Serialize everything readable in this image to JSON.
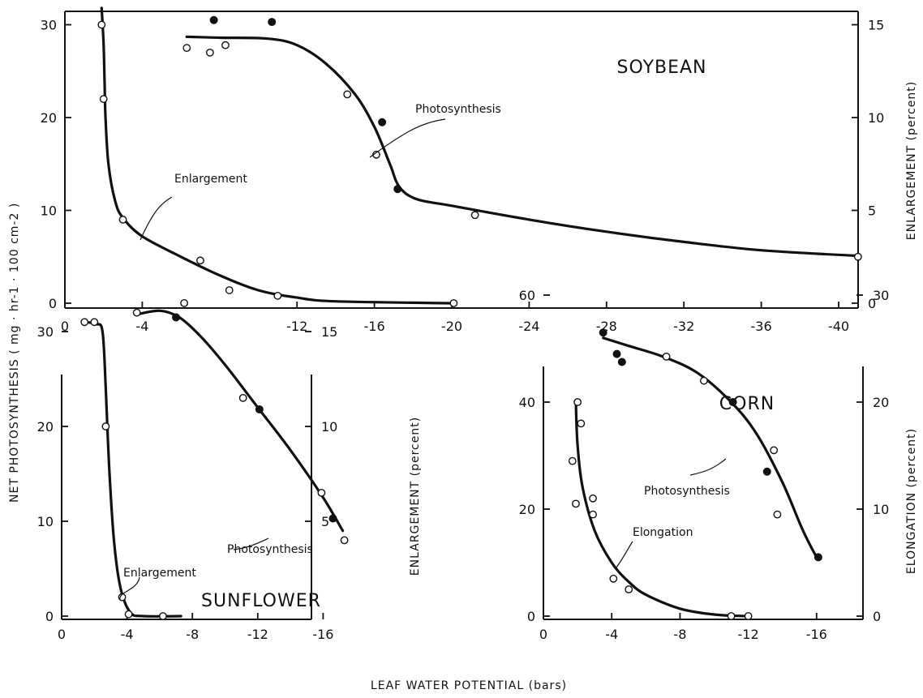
{
  "shared_labels": {
    "ylabel_left": "NET PHOTOSYNTHESIS  ( mg · hr-1 · 100 cm-2 )",
    "xlabel": "LEAF  WATER  POTENTIAL  (bars)"
  },
  "chart_data": [
    {
      "type": "line",
      "panel": "SOYBEAN",
      "title": "SOYBEAN",
      "x_ticks": [
        0,
        -4,
        -12,
        -16,
        -20,
        -24,
        -28,
        -32,
        -36,
        -40
      ],
      "x_ticks_text": [
        "0",
        "-4",
        "-12",
        "-16",
        "-20",
        "-24",
        "-28",
        "-32",
        "-36",
        "-40"
      ],
      "xlim": [
        0,
        -44
      ],
      "ylim_left": [
        0,
        32
      ],
      "y_ticks_left": [
        "0",
        "10",
        "20",
        "30"
      ],
      "ylim_right": [
        0,
        16
      ],
      "y_ticks_right": [
        "0",
        "5",
        "10",
        "15"
      ],
      "ylabel_right": "ENLARGEMENT (percent)",
      "series": [
        {
          "name": "Photosynthesis",
          "axis": "left",
          "curve": [
            [
              -6.3,
              28.7
            ],
            [
              -8,
              28.6
            ],
            [
              -10.5,
              28.5
            ],
            [
              -12,
              27.8
            ],
            [
              -13.5,
              25.8
            ],
            [
              -15,
              22.5
            ],
            [
              -16,
              19
            ],
            [
              -16.8,
              15
            ],
            [
              -17.3,
              12.5
            ],
            [
              -18.2,
              11.2
            ],
            [
              -20,
              10.5
            ],
            [
              -24,
              9
            ],
            [
              -28,
              7.7
            ],
            [
              -32,
              6.6
            ],
            [
              -36,
              5.7
            ],
            [
              -41,
              5.1
            ]
          ],
          "points": [
            {
              "x": -6.3,
              "y": 27.5,
              "filled": false
            },
            {
              "x": -7.5,
              "y": 27,
              "filled": false
            },
            {
              "x": -8.3,
              "y": 27.8,
              "filled": false
            },
            {
              "x": -7.7,
              "y": 30.5,
              "filled": true
            },
            {
              "x": -10.7,
              "y": 30.3,
              "filled": true
            },
            {
              "x": -14.6,
              "y": 22.5,
              "filled": false
            },
            {
              "x": -16.4,
              "y": 19.5,
              "filled": true
            },
            {
              "x": -16.1,
              "y": 16,
              "filled": false
            },
            {
              "x": -17.2,
              "y": 12.3,
              "filled": true
            },
            {
              "x": -21.2,
              "y": 9.5,
              "filled": false
            },
            {
              "x": -41,
              "y": 5,
              "filled": false
            }
          ]
        },
        {
          "name": "Enlargement",
          "axis": "right",
          "curve": [
            [
              -1.9,
              15.9
            ],
            [
              -2.0,
              14
            ],
            [
              -2.05,
              12
            ],
            [
              -2.1,
              10
            ],
            [
              -2.25,
              7.5
            ],
            [
              -2.6,
              5.5
            ],
            [
              -3.0,
              4.6
            ],
            [
              -4.0,
              3.6
            ],
            [
              -6,
              2.5
            ],
            [
              -8,
              1.5
            ],
            [
              -10,
              0.7
            ],
            [
              -12,
              0.3
            ],
            [
              -14,
              0.1
            ],
            [
              -20,
              0
            ]
          ],
          "points": [
            {
              "x": -1.9,
              "y": 15,
              "filled": false
            },
            {
              "x": -2.0,
              "y": 11,
              "filled": false
            },
            {
              "x": -3.0,
              "y": 4.5,
              "filled": false
            },
            {
              "x": -7.0,
              "y": 2.3,
              "filled": false
            },
            {
              "x": -8.5,
              "y": 0.7,
              "filled": false
            },
            {
              "x": -11.0,
              "y": 0.4,
              "filled": false
            },
            {
              "x": -20.1,
              "y": 0,
              "filled": false
            }
          ]
        }
      ]
    },
    {
      "type": "line",
      "panel": "SUNFLOWER",
      "title": "SUNFLOWER",
      "x_ticks": [
        0,
        -4,
        -8,
        -12,
        -16
      ],
      "x_ticks_text": [
        "0",
        "-4",
        "-8",
        "-12",
        "-16"
      ],
      "xlim": [
        0,
        -18
      ],
      "ylim_left": [
        0,
        34
      ],
      "y_ticks_left": [
        "0",
        "10",
        "20",
        "30"
      ],
      "ylim_right": [
        0,
        17
      ],
      "y_ticks_right": [
        "5",
        "10",
        "15"
      ],
      "ylabel_right": "ENLARGEMENT (percent)",
      "series": [
        {
          "name": "Photosynthesis",
          "axis": "left",
          "curve": [
            [
              -4.6,
              31.8
            ],
            [
              -6,
              32.2
            ],
            [
              -7.2,
              31.5
            ],
            [
              -8.5,
              29.5
            ],
            [
              -10,
              26.5
            ],
            [
              -12,
              22
            ],
            [
              -14,
              17.5
            ],
            [
              -16,
              12.5
            ],
            [
              -17.2,
              9
            ]
          ],
          "points": [
            {
              "x": -4.6,
              "y": 32,
              "filled": false
            },
            {
              "x": -7.0,
              "y": 31.5,
              "filled": true
            },
            {
              "x": -7.5,
              "y": 33,
              "filled": false
            },
            {
              "x": -11.1,
              "y": 23,
              "filled": false
            },
            {
              "x": -12.1,
              "y": 21.8,
              "filled": true
            },
            {
              "x": -15.9,
              "y": 13,
              "filled": false
            },
            {
              "x": -16.6,
              "y": 10.3,
              "filled": true
            },
            {
              "x": -17.3,
              "y": 8,
              "filled": false
            }
          ]
        },
        {
          "name": "Enlargement",
          "axis": "right",
          "curve": [
            [
              -1.4,
              15.5
            ],
            [
              -2.1,
              15.4
            ],
            [
              -2.5,
              15.0
            ],
            [
              -2.7,
              12
            ],
            [
              -2.9,
              8
            ],
            [
              -3.2,
              4
            ],
            [
              -3.6,
              1.5
            ],
            [
              -4.2,
              0.2
            ],
            [
              -5,
              0
            ],
            [
              -7.3,
              0
            ]
          ],
          "points": [
            {
              "x": -1.4,
              "y": 15.5,
              "filled": false
            },
            {
              "x": -2.0,
              "y": 15.5,
              "filled": false
            },
            {
              "x": -2.7,
              "y": 10,
              "filled": false
            },
            {
              "x": -3.7,
              "y": 1.0,
              "filled": false
            },
            {
              "x": -4.1,
              "y": 0.1,
              "filled": false
            },
            {
              "x": -6.2,
              "y": 0,
              "filled": false
            }
          ]
        }
      ]
    },
    {
      "type": "line",
      "panel": "CORN",
      "title": "CORN",
      "x_ticks": [
        0,
        -4,
        -8,
        -12,
        -16
      ],
      "x_ticks_text": [
        "0",
        "-4",
        "-8",
        "-12",
        "-16"
      ],
      "xlim": [
        0,
        -17
      ],
      "ylim_left": [
        0,
        60
      ],
      "y_ticks_left": [
        "0",
        "20",
        "40",
        "60"
      ],
      "ylim_right": [
        0,
        30
      ],
      "y_ticks_right": [
        "0",
        "10",
        "20",
        "30"
      ],
      "ylabel_right": "ELONGATION (percent)",
      "series": [
        {
          "name": "Photosynthesis",
          "axis": "left",
          "curve": [
            [
              -3.5,
              52
            ],
            [
              -5,
              50.5
            ],
            [
              -7,
              48.5
            ],
            [
              -9,
              45.5
            ],
            [
              -11,
              40
            ],
            [
              -12.5,
              34
            ],
            [
              -14,
              25
            ],
            [
              -15.2,
              16
            ],
            [
              -16,
              11
            ]
          ],
          "points": [
            {
              "x": -3.5,
              "y": 53,
              "filled": true
            },
            {
              "x": -4.3,
              "y": 49,
              "filled": true
            },
            {
              "x": -4.6,
              "y": 47.5,
              "filled": true
            },
            {
              "x": -7.2,
              "y": 48.5,
              "filled": false
            },
            {
              "x": -9.4,
              "y": 44,
              "filled": false
            },
            {
              "x": -11.1,
              "y": 40,
              "filled": true
            },
            {
              "x": -13.5,
              "y": 31,
              "filled": false
            },
            {
              "x": -13.1,
              "y": 27,
              "filled": true
            },
            {
              "x": -13.7,
              "y": 19,
              "filled": false
            },
            {
              "x": -16.1,
              "y": 11,
              "filled": true
            }
          ]
        },
        {
          "name": "Elongation",
          "axis": "right",
          "curve": [
            [
              -1.9,
              20
            ],
            [
              -2.0,
              16
            ],
            [
              -2.3,
              12
            ],
            [
              -3,
              8
            ],
            [
              -4,
              5
            ],
            [
              -5,
              3.2
            ],
            [
              -6,
              2
            ],
            [
              -8,
              0.7
            ],
            [
              -10,
              0.15
            ],
            [
              -12,
              0
            ]
          ],
          "points": [
            {
              "x": -2.0,
              "y": 20,
              "filled": false
            },
            {
              "x": -1.7,
              "y": 14.5,
              "filled": false
            },
            {
              "x": -1.9,
              "y": 10.5,
              "filled": false
            },
            {
              "x": -2.2,
              "y": 18,
              "filled": false
            },
            {
              "x": -2.9,
              "y": 11,
              "filled": false
            },
            {
              "x": -2.9,
              "y": 9.5,
              "filled": false
            },
            {
              "x": -4.1,
              "y": 3.5,
              "filled": false
            },
            {
              "x": -5.0,
              "y": 2.5,
              "filled": false
            },
            {
              "x": -11.0,
              "y": 0,
              "filled": false
            },
            {
              "x": -12.0,
              "y": 0,
              "filled": false
            }
          ]
        }
      ]
    }
  ]
}
